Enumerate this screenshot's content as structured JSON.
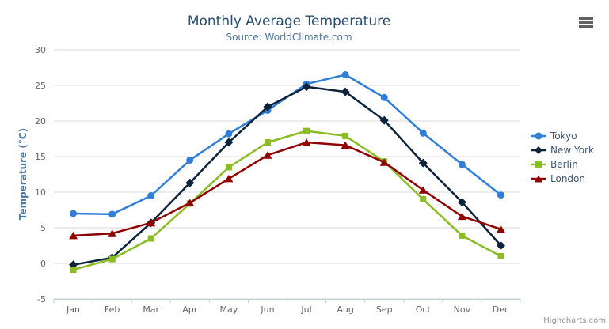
{
  "credits": {
    "text": "Highcharts.com"
  },
  "export_menu": {
    "icon": "hamburger-menu-icon"
  },
  "chart_data": {
    "type": "line",
    "title": "Monthly Average Temperature",
    "subtitle": "Source: WorldClimate.com",
    "xlabel": "",
    "ylabel": "Temperature (°C)",
    "ylim": [
      -5,
      30
    ],
    "tick_interval": 5,
    "grid": "horizontal-only",
    "legend_position": "right-middle",
    "categories": [
      "Jan",
      "Feb",
      "Mar",
      "Apr",
      "May",
      "Jun",
      "Jul",
      "Aug",
      "Sep",
      "Oct",
      "Nov",
      "Dec"
    ],
    "series": [
      {
        "name": "Tokyo",
        "color": "#2f7ed8",
        "marker": "circle",
        "values": [
          7.0,
          6.9,
          9.5,
          14.5,
          18.2,
          21.5,
          25.2,
          26.5,
          23.3,
          18.3,
          13.9,
          9.6
        ]
      },
      {
        "name": "New York",
        "color": "#0d233a",
        "marker": "diamond",
        "values": [
          -0.2,
          0.8,
          5.7,
          11.3,
          17.0,
          22.0,
          24.8,
          24.1,
          20.1,
          14.1,
          8.6,
          2.5
        ]
      },
      {
        "name": "Berlin",
        "color": "#8bbc21",
        "marker": "square",
        "values": [
          -0.9,
          0.6,
          3.5,
          8.4,
          13.5,
          17.0,
          18.6,
          17.9,
          14.3,
          9.0,
          3.9,
          1.0
        ]
      },
      {
        "name": "London",
        "color": "#910000",
        "marker": "triangle",
        "values": [
          3.9,
          4.2,
          5.7,
          8.5,
          11.9,
          15.2,
          17.0,
          16.6,
          14.2,
          10.3,
          6.6,
          4.8
        ]
      }
    ],
    "style": {
      "grid_color": "#d8d8d8",
      "axis_line_color": "#c0d0e0",
      "axis_label_color": "#666666",
      "title_color": "#274b6d",
      "subtitle_color": "#4d759e",
      "legend_text_color": "#3e576f"
    }
  }
}
